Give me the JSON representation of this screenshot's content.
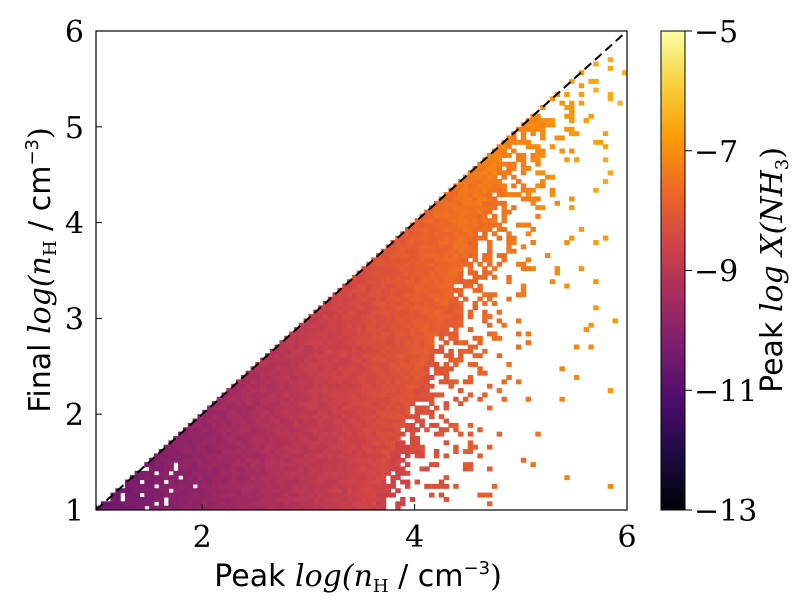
{
  "chart_data": {
    "type": "heatmap",
    "xlabel_prefix": "Peak",
    "xlabel_math": "log(n",
    "xlabel_sub": "H",
    "xlabel_unit": " / cm",
    "xlabel_exp": "−3",
    "xlabel_close": ")",
    "ylabel_prefix": "Final",
    "ylabel_math": "log(n",
    "ylabel_sub": "H",
    "ylabel_unit": " / cm",
    "ylabel_exp": "−3",
    "ylabel_close": ")",
    "xlim": [
      1,
      6
    ],
    "ylim": [
      1,
      6
    ],
    "x_ticks": [
      2,
      4,
      6
    ],
    "y_ticks": [
      1,
      2,
      3,
      4,
      5,
      6
    ],
    "x_tick_labels": [
      "2",
      "4",
      "6"
    ],
    "y_tick_labels": [
      "1",
      "2",
      "3",
      "4",
      "5",
      "6"
    ],
    "diagonal_line": {
      "from": [
        1,
        1
      ],
      "to": [
        6,
        6
      ],
      "style": "dashed",
      "color": "#000000"
    },
    "colorbar": {
      "label_prefix": "Peak",
      "label_math": "log X(NH",
      "label_sub": "3",
      "label_close": ")",
      "vmin": -13,
      "vmax": -5,
      "ticks": [
        -13,
        -11,
        -9,
        -7,
        -5
      ],
      "tick_labels": [
        "−13",
        "−11",
        "−9",
        "−7",
        "−5"
      ],
      "colormap": "inferno",
      "colors": [
        "#000004",
        "#1b0c41",
        "#4a0c6b",
        "#781c6d",
        "#a52c60",
        "#cf4446",
        "#ed6925",
        "#fb9b06",
        "#f7d13d",
        "#fcffa4"
      ]
    },
    "approx_value_field": {
      "description": "value rises from about -10.5 at low density to about -6.8 at peak density 6; region below y < x filled, right edge near x ~ 3.6 + 0.3*(y-1) with speckled fringe",
      "value_at_x1": -10.6,
      "value_at_x6": -6.7
    }
  }
}
